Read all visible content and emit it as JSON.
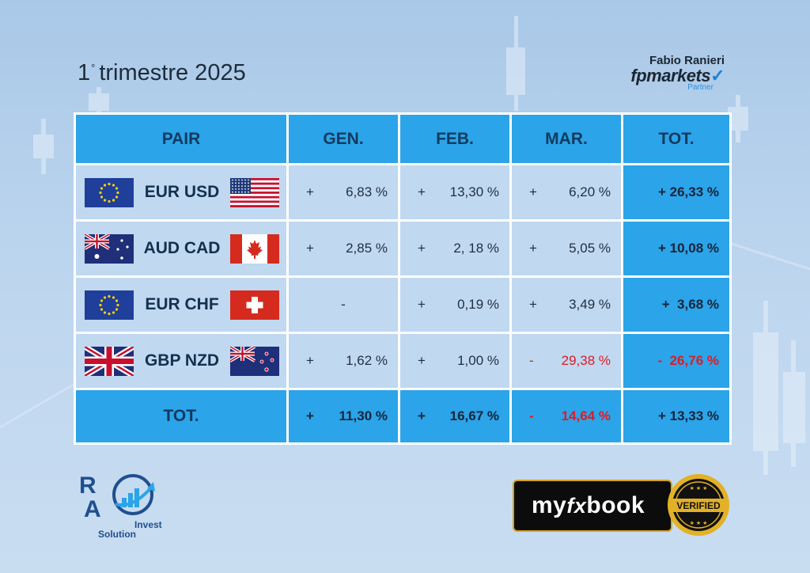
{
  "header": {
    "title_number": "1",
    "title_text": "trimestre 2025"
  },
  "brand": {
    "person": "Fabio Ranieri",
    "company": "fpmarkets",
    "tagline": "Partner"
  },
  "table": {
    "headers": [
      "PAIR",
      "GEN.",
      "FEB.",
      "MAR.",
      "TOT."
    ],
    "rows": [
      {
        "pair": "EUR USD",
        "flag_left": "eu-flag",
        "flag_right": "us-flag",
        "gen": {
          "sign": "+",
          "value": "6,83 %",
          "negative": false
        },
        "feb": {
          "sign": "+",
          "value": "13,30 %",
          "negative": false
        },
        "mar": {
          "sign": "+",
          "value": "6,20 %",
          "negative": false
        },
        "tot": {
          "text": "+ 26,33 %",
          "negative": false
        }
      },
      {
        "pair": "AUD CAD",
        "flag_left": "au-flag",
        "flag_right": "ca-flag",
        "gen": {
          "sign": "+",
          "value": "2,85 %",
          "negative": false
        },
        "feb": {
          "sign": "+",
          "value": "2, 18 %",
          "negative": false
        },
        "mar": {
          "sign": "+",
          "value": "5,05 %",
          "negative": false
        },
        "tot": {
          "text": "+ 10,08 %",
          "negative": false
        }
      },
      {
        "pair": "EUR CHF",
        "flag_left": "eu-flag",
        "flag_right": "ch-flag",
        "gen": {
          "sign": "",
          "value": "-",
          "negative": false
        },
        "feb": {
          "sign": "+",
          "value": "0,19 %",
          "negative": false
        },
        "mar": {
          "sign": "+",
          "value": "3,49 %",
          "negative": false
        },
        "tot": {
          "text": "+  3,68 %",
          "negative": false
        }
      },
      {
        "pair": "GBP NZD",
        "flag_left": "gb-flag",
        "flag_right": "nz-flag",
        "gen": {
          "sign": "+",
          "value": "1,62 %",
          "negative": false
        },
        "feb": {
          "sign": "+",
          "value": "1,00 %",
          "negative": false
        },
        "mar": {
          "sign": "-",
          "value": "29,38 %",
          "negative": true
        },
        "tot": {
          "text": "-  26,76 %",
          "negative": true
        }
      }
    ],
    "totals": {
      "label": "TOT.",
      "gen": {
        "sign": "+",
        "value": "11,30 %",
        "negative": false
      },
      "feb": {
        "sign": "+",
        "value": "16,67 %",
        "negative": false
      },
      "mar": {
        "sign": "-",
        "value": "14,64 %",
        "negative": true
      },
      "tot": {
        "text": "+ 13,33 %",
        "negative": false
      }
    }
  },
  "footer": {
    "ra_logo": {
      "letter_top": "R",
      "letter_bottom": "A",
      "word_invest": "Invest",
      "word_solution": "Solution"
    },
    "myfxbook": {
      "prefix": "my",
      "fx": "fx",
      "suffix": "book",
      "badge_text": "VERIFIED"
    }
  },
  "colors": {
    "header_blue": "#2ba4e9",
    "cell_light": "#c0d8f0",
    "negative_red": "#e01b24"
  }
}
